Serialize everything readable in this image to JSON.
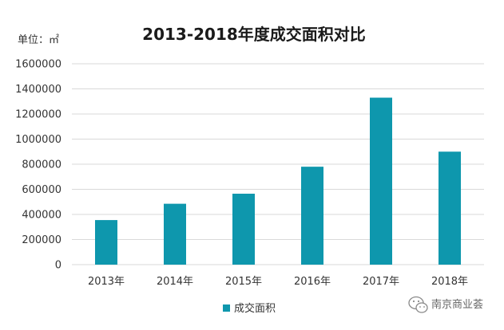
{
  "chart_data": {
    "type": "bar",
    "title": "2013-2018年度成交面积对比",
    "unit_label": "单位：㎡",
    "categories": [
      "2013年",
      "2014年",
      "2015年",
      "2016年",
      "2017年",
      "2018年"
    ],
    "series": [
      {
        "name": "成交面积",
        "color": "#0e97ad",
        "values": [
          355000,
          485000,
          565000,
          780000,
          1330000,
          900000
        ]
      }
    ],
    "y_ticks": [
      "0",
      "200000",
      "400000",
      "600000",
      "800000",
      "1000000",
      "1200000",
      "1400000",
      "1600000"
    ],
    "ylim": [
      0,
      1600000
    ],
    "grid": true,
    "legend_position": "bottom"
  },
  "watermark": {
    "text": "南京商业荟",
    "icon": "wechat-icon"
  }
}
